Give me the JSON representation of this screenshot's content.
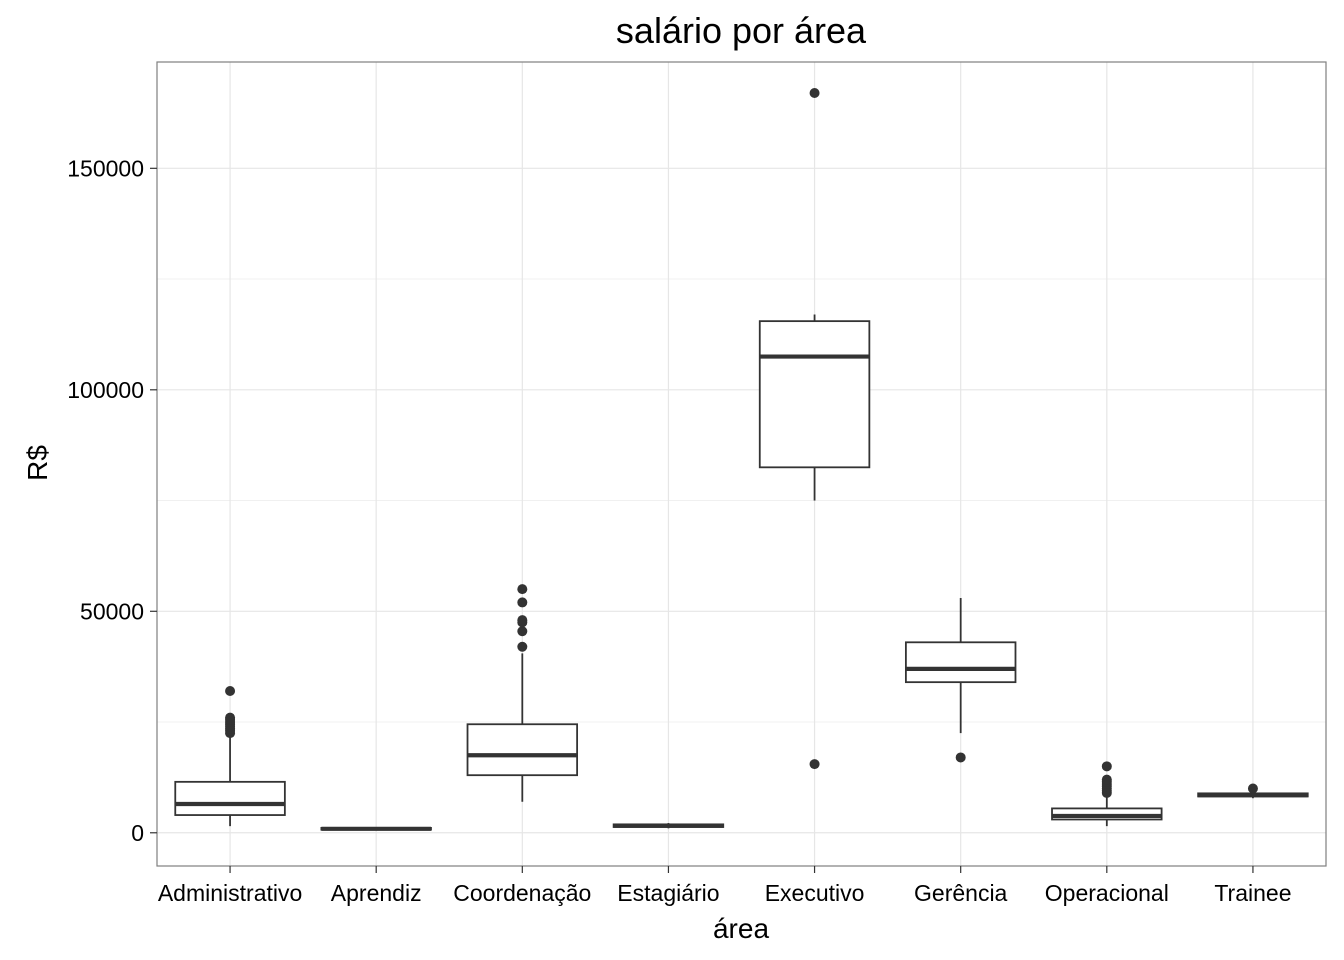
{
  "chart_data": {
    "type": "boxplot",
    "title": "salário por área",
    "xlabel": "área",
    "ylabel": "R$",
    "ylim": [
      -7500,
      174000
    ],
    "yticks": [
      0,
      50000,
      100000,
      150000
    ],
    "yticklabels": [
      "0",
      "50000",
      "100000",
      "150000"
    ],
    "grid": true,
    "categories": [
      "Administrativo",
      "Aprendiz",
      "Coordenação",
      "Estagiário",
      "Executivo",
      "Gerência",
      "Operacional",
      "Trainee"
    ],
    "boxes": [
      {
        "name": "Administrativo",
        "whisker_low": 1500,
        "q1": 4000,
        "median": 6500,
        "q3": 11500,
        "whisker_high": 22000,
        "outliers": [
          22500,
          23000,
          23500,
          24000,
          24500,
          25000,
          25500,
          26000,
          32000
        ]
      },
      {
        "name": "Aprendiz",
        "whisker_low": 500,
        "q1": 700,
        "median": 900,
        "q3": 1100,
        "whisker_high": 1300,
        "outliers": []
      },
      {
        "name": "Coordenação",
        "whisker_low": 7000,
        "q1": 13000,
        "median": 17500,
        "q3": 24500,
        "whisker_high": 40500,
        "outliers": [
          42000,
          45500,
          47500,
          48000,
          52000,
          55000
        ]
      },
      {
        "name": "Estagiário",
        "whisker_low": 1000,
        "q1": 1300,
        "median": 1600,
        "q3": 1900,
        "whisker_high": 2200,
        "outliers": []
      },
      {
        "name": "Executivo",
        "whisker_low": 75000,
        "q1": 82500,
        "median": 107500,
        "q3": 115500,
        "whisker_high": 117000,
        "outliers": [
          15500,
          167000
        ]
      },
      {
        "name": "Gerência",
        "whisker_low": 22500,
        "q1": 34000,
        "median": 37000,
        "q3": 43000,
        "whisker_high": 53000,
        "outliers": [
          17000
        ]
      },
      {
        "name": "Operacional",
        "whisker_low": 1500,
        "q1": 3000,
        "median": 3800,
        "q3": 5500,
        "whisker_high": 8500,
        "outliers": [
          9000,
          9500,
          10000,
          10500,
          11000,
          11500,
          12000,
          15000
        ]
      },
      {
        "name": "Trainee",
        "whisker_low": 7800,
        "q1": 8200,
        "median": 8500,
        "q3": 8900,
        "whisker_high": 9300,
        "outliers": [
          10000
        ]
      }
    ]
  }
}
